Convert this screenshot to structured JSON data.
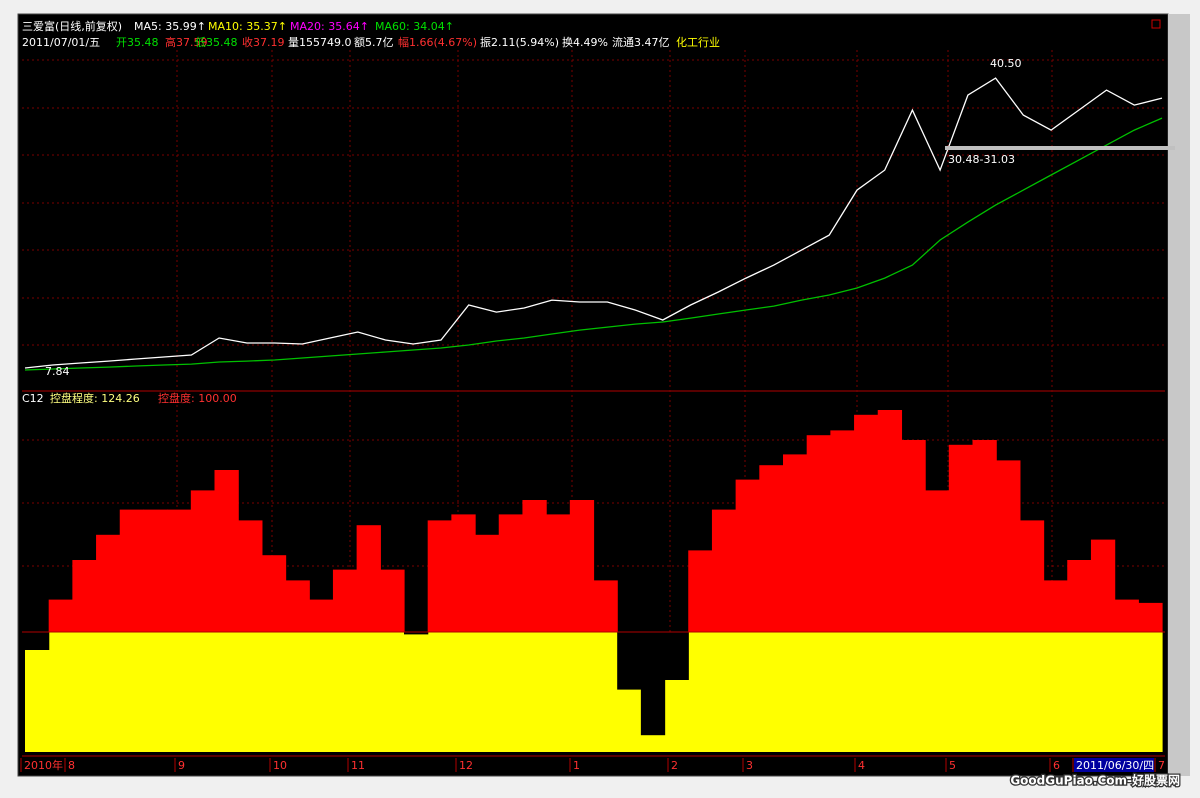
{
  "header": {
    "line1": [
      "三爱富(日线,前复权)",
      "MA10: 35.37↑",
      "MA20: 35.64↑"
    ],
    "line2": [
      "2011/07/01/五",
      "开35.48",
      "高37.59",
      "低35.48",
      "收37.19",
      "量155749.0",
      "额5.7亿",
      "幅1.66(4.67%)",
      "振2.11(5.94%)",
      "换4.49%",
      "流通3.47亿",
      "化工行业"
    ],
    "indicator": "C12",
    "x_labels": [
      "2010年",
      "8",
      "9",
      "10",
      "11",
      "12",
      "1",
      "2",
      "3",
      "4",
      "5",
      "6",
      "2011/06/30/四",
      "7"
    ],
    "footer": "GoodGuPiao.Com-好股票网"
  },
  "chart_data": [
    {
      "type": "line",
      "ylim": [
        5.5,
        41.8
      ],
      "annotations": [
        "40.50",
        "30.48-31.03",
        "7.84"
      ],
      "series": [
        {
          "name": "MA5: 35.99↑",
          "color": "#ffffff",
          "values": [
            7.85,
            8.17,
            8.38,
            8.59,
            8.81,
            9.02,
            9.24,
            11.05,
            10.52,
            10.52,
            10.41,
            11.05,
            11.69,
            10.84,
            10.41,
            10.84,
            14.57,
            13.82,
            14.25,
            15.1,
            14.89,
            14.89,
            14.04,
            12.97,
            14.57,
            15.96,
            17.45,
            18.84,
            20.44,
            22.04,
            26.84,
            28.98,
            35.38,
            28.98,
            36.98,
            38.8,
            34.85,
            33.25,
            35.38,
            37.52,
            35.92,
            36.66
          ]
        },
        {
          "name": "MA60: 34.04↑",
          "color": "#00c000",
          "values": [
            7.63,
            7.74,
            7.85,
            7.95,
            8.06,
            8.17,
            8.27,
            8.49,
            8.59,
            8.7,
            8.92,
            9.13,
            9.34,
            9.56,
            9.77,
            9.98,
            10.3,
            10.73,
            11.05,
            11.48,
            11.9,
            12.22,
            12.54,
            12.76,
            13.18,
            13.61,
            14.04,
            14.46,
            15.1,
            15.64,
            16.39,
            17.45,
            18.84,
            21.51,
            23.43,
            25.24,
            26.84,
            28.45,
            30.05,
            31.65,
            33.25,
            34.53
          ]
        }
      ]
    },
    {
      "type": "stepped-bar",
      "ylim": [
        0,
        300
      ],
      "series": [
        {
          "name": "控盘度: 100.00",
          "color": "#ffff00",
          "values": [
            100,
            100,
            100,
            100,
            100,
            100,
            100,
            100,
            100,
            100,
            100,
            100,
            100,
            100,
            100,
            100,
            100,
            100,
            100,
            100,
            100,
            100,
            100,
            100,
            100,
            100,
            100,
            100,
            100,
            100,
            100,
            100,
            100,
            100,
            100,
            100,
            100,
            100,
            100,
            100,
            100,
            100,
            100,
            100,
            100,
            100,
            100,
            100
          ]
        },
        {
          "name": "控盘程度: 124.26",
          "color": "#ff0000",
          "values": [
            85,
            127,
            160,
            181,
            202,
            202,
            202,
            218,
            235,
            193,
            164,
            143,
            127,
            152,
            189,
            152,
            98,
            193,
            198,
            181,
            198,
            210,
            198,
            210,
            143,
            52,
            14,
            60,
            168,
            202,
            227,
            239,
            248,
            264,
            268,
            281,
            285,
            260,
            218,
            256,
            260,
            243,
            193,
            143,
            160,
            177,
            127,
            124.26
          ]
        }
      ]
    }
  ]
}
